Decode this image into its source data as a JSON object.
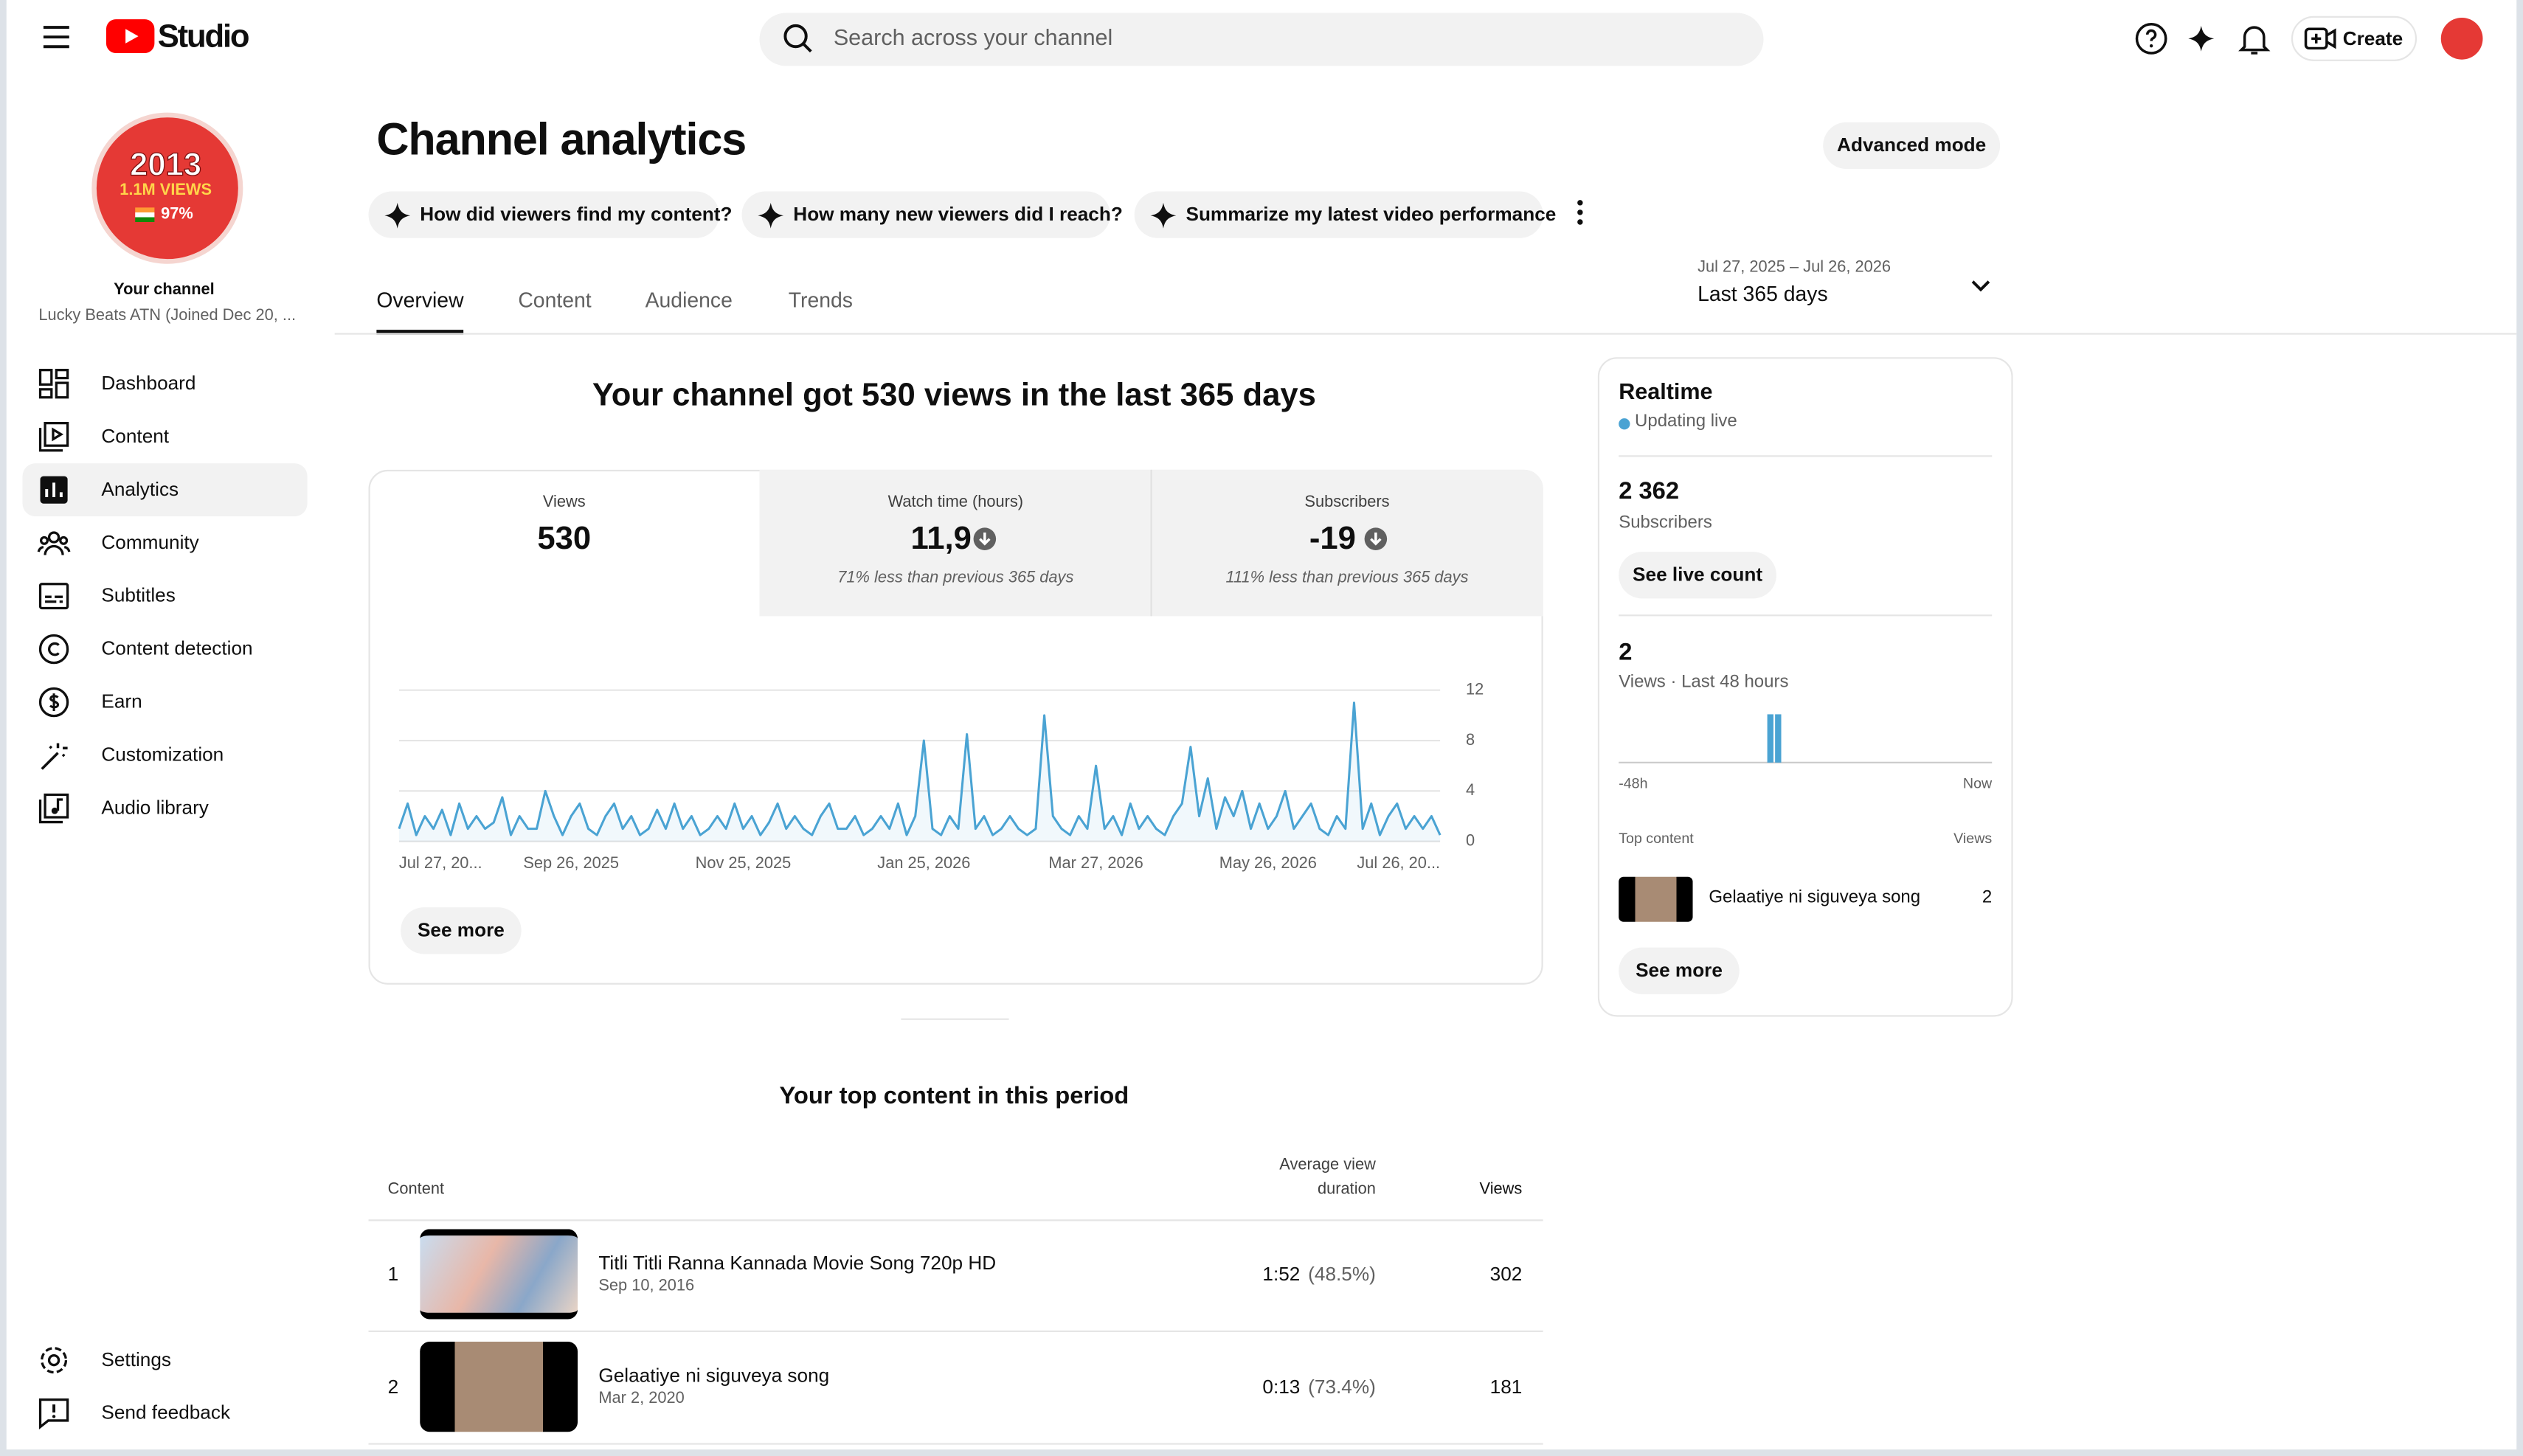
{
  "header": {
    "logo_text": "Studio",
    "search_placeholder": "Search across your channel",
    "create": "Create"
  },
  "sidebar": {
    "avatar_lines": [
      "2013",
      "1.1M VIEWS",
      "97%"
    ],
    "your_channel": "Your channel",
    "channel_name": "Lucky Beats ATN (Joined Dec 20, ...",
    "nav": [
      "Dashboard",
      "Content",
      "Analytics",
      "Community",
      "Subtitles",
      "Content detection",
      "Earn",
      "Customization",
      "Audio library"
    ],
    "active_nav": 2,
    "bottom": [
      "Settings",
      "Send feedback"
    ]
  },
  "page": {
    "title": "Channel analytics",
    "advanced_mode": "Advanced mode",
    "prompts": [
      "How did viewers find my content?",
      "How many new viewers did I reach?",
      "Summarize my latest video performance"
    ],
    "tabs": [
      "Overview",
      "Content",
      "Audience",
      "Trends"
    ],
    "active_tab": 0,
    "date_range": {
      "range": "Jul 27, 2025 – Jul 26, 2026",
      "label": "Last 365 days"
    }
  },
  "overview": {
    "headline": "Your channel got 530 views in the last 365 days",
    "metrics": [
      {
        "label": "Views",
        "value": "530"
      },
      {
        "label": "Watch time (hours)",
        "value": "11,9",
        "note": "71% less than previous 365 days"
      },
      {
        "label": "Subscribers",
        "value": "-19",
        "note": "111% less than previous 365 days"
      }
    ],
    "see_more": "See more"
  },
  "main_chart": {
    "type": "line",
    "color": "#4aa3d3",
    "values": [
      1,
      3,
      0.5,
      2,
      1,
      2.5,
      0.5,
      3,
      1,
      2,
      1,
      1.5,
      3.5,
      0.5,
      2,
      1,
      1,
      4,
      2,
      0.5,
      2,
      3,
      1,
      0.5,
      2,
      3,
      1,
      2,
      0.5,
      1,
      2.5,
      1,
      3,
      1,
      2,
      0.5,
      1,
      2,
      1,
      3,
      1,
      2,
      0.5,
      1.5,
      3,
      1,
      2,
      1,
      0.5,
      2,
      3,
      1,
      1,
      2,
      0.5,
      1,
      2,
      1,
      3,
      0.5,
      2,
      8,
      1,
      0.5,
      2,
      1,
      8.5,
      1,
      2,
      0.5,
      1,
      2,
      1,
      0.5,
      1,
      10,
      2,
      1,
      0.5,
      2,
      1,
      6,
      1,
      2,
      0.5,
      3,
      1,
      2,
      1,
      0.5,
      2,
      3,
      7.5,
      2,
      5,
      1,
      3.5,
      2,
      4,
      1,
      3,
      1,
      2,
      4,
      1,
      2,
      3,
      1,
      0.5,
      2,
      1,
      11,
      1,
      3,
      0.5,
      2,
      3,
      1,
      2,
      1,
      2,
      0.5
    ],
    "xlim": [
      0,
      121
    ],
    "xticks": [
      {
        "value": 0,
        "label": "Jul 27, 20..."
      },
      {
        "value": 20,
        "label": "Sep 26, 2025"
      },
      {
        "value": 40,
        "label": "Nov 25, 2025"
      },
      {
        "value": 61,
        "label": "Jan 25, 2026"
      },
      {
        "value": 81,
        "label": "Mar 27, 2026"
      },
      {
        "value": 101,
        "label": "May 26, 2026"
      },
      {
        "value": 121,
        "label": "Jul 26, 20..."
      }
    ],
    "ylim": [
      0,
      12
    ],
    "yticks": [
      0,
      4,
      8,
      12
    ],
    "grid": true
  },
  "realtime": {
    "title": "Realtime",
    "status": "Updating live",
    "subscribers_value": "2 362",
    "subscribers_label": "Subscribers",
    "see_live_count": "See live count",
    "views_value": "2",
    "views_label": "Views · Last 48 hours",
    "chart": {
      "type": "bar",
      "color": "#4aa3d3",
      "values": [
        0,
        0,
        0,
        0,
        0,
        0,
        0,
        0,
        0,
        0,
        0,
        0,
        0,
        0,
        0,
        0,
        0,
        0,
        0,
        1,
        1,
        0,
        0,
        0,
        0,
        0,
        0,
        0,
        0,
        0,
        0,
        0,
        0,
        0,
        0,
        0,
        0,
        0,
        0,
        0,
        0,
        0,
        0,
        0,
        0,
        0,
        0,
        0
      ],
      "ylim": [
        0,
        1
      ],
      "x_start_label": "-48h",
      "x_end_label": "Now"
    },
    "top_content_header": "Top content",
    "views_header": "Views",
    "top_item": {
      "title": "Gelaatiye ni siguveya song",
      "views": "2"
    },
    "see_more": "See more"
  },
  "top_content": {
    "title": "Your top content in this period",
    "columns": {
      "content": "Content",
      "duration": "Average view duration",
      "views": "Views"
    },
    "rows": [
      {
        "rank": "1",
        "title": "Titli Titli Ranna Kannada Movie Song 720p HD",
        "date": "Sep 10, 2016",
        "duration": "1:52",
        "percent": "(48.5%)",
        "views": "302"
      },
      {
        "rank": "2",
        "title": "Gelaatiye ni siguveya song",
        "date": "Mar 2, 2020",
        "duration": "0:13",
        "percent": "(73.4%)",
        "views": "181"
      }
    ]
  }
}
